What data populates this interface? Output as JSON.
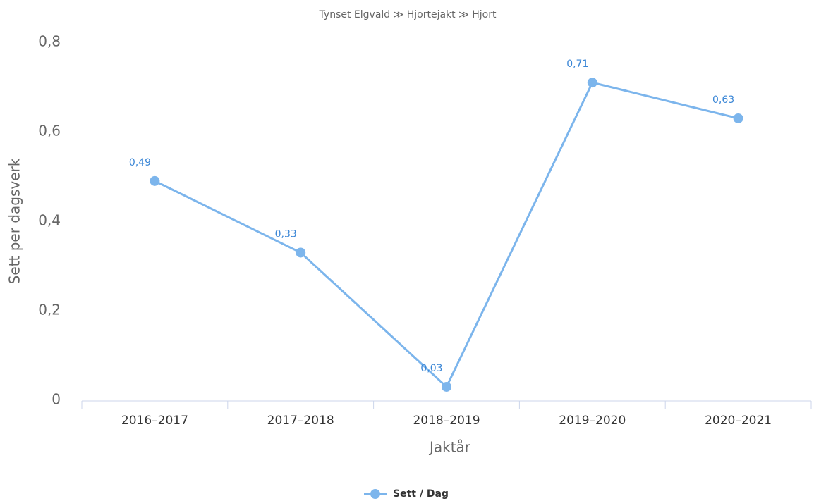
{
  "chart_data": {
    "type": "line",
    "title": "Tynset Elgvald ≫ Hjortejakt ≫ Hjort",
    "x_label": "Jaktår",
    "y_label": "Sett per dagsverk",
    "categories": [
      "2016–2017",
      "2017–2018",
      "2018–2019",
      "2019–2020",
      "2020–2021"
    ],
    "series": [
      {
        "name": "Sett / Dag",
        "color": "#7cb5ec",
        "values": [
          0.49,
          0.33,
          0.03,
          0.71,
          0.63
        ],
        "value_labels": [
          "0,49",
          "0,33",
          "0,03",
          "0,71",
          "0,63"
        ]
      }
    ],
    "ylim": [
      0,
      0.8
    ],
    "yticks": [
      0,
      {
        "value": 0.2,
        "label": "0,2"
      },
      {
        "value": 0.4,
        "label": "0,4"
      },
      {
        "value": 0.6,
        "label": "0,6"
      },
      {
        "value": 0.8,
        "label": "0,8"
      }
    ],
    "grid": false,
    "legend": "bottom"
  }
}
